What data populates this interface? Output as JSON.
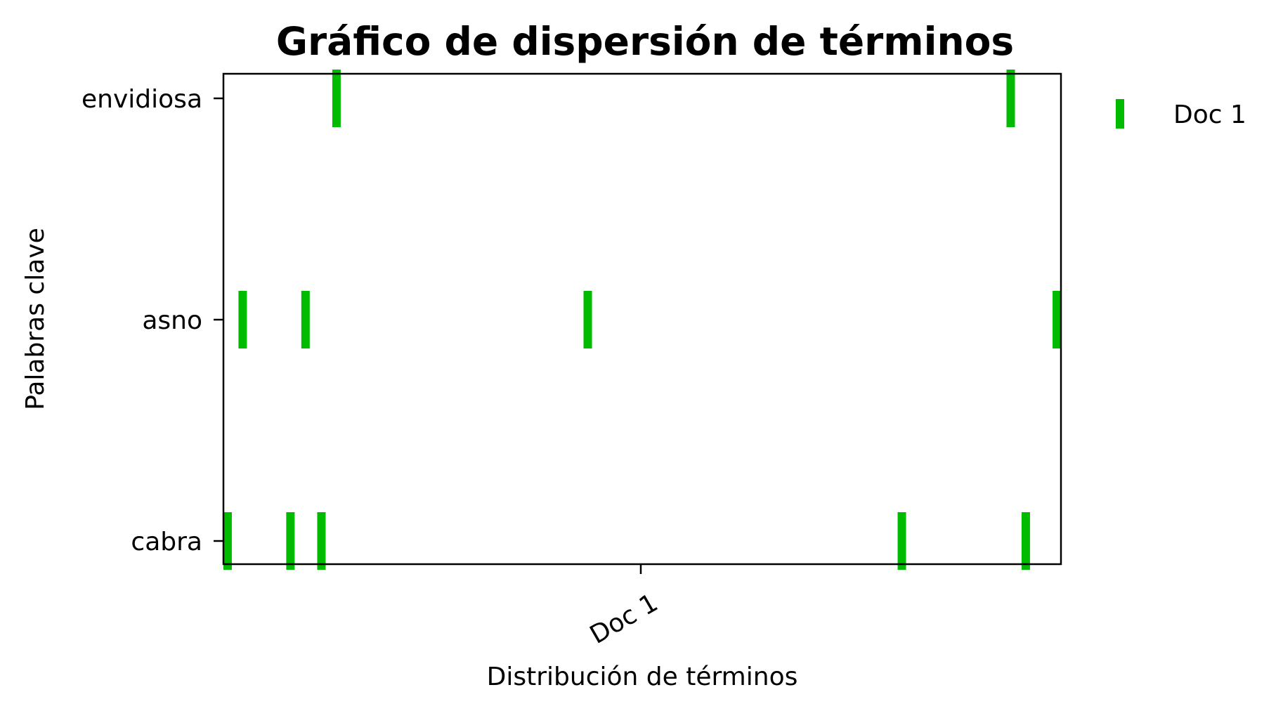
{
  "chart_data": {
    "type": "scatter",
    "title": "Gráfico de dispersión de términos",
    "xlabel": "Distribución de términos",
    "ylabel": "Palabras clave",
    "x_ticks": [
      "Doc 1"
    ],
    "y_categories": [
      "cabra",
      "asno",
      "envidiosa"
    ],
    "xlim": [
      0,
      1
    ],
    "legend": {
      "position": "outside-right",
      "entries": [
        "Doc 1"
      ]
    },
    "grid": false,
    "series": [
      {
        "name": "Doc 1",
        "color": "#00bb00",
        "marker": "vertical-line",
        "points": [
          {
            "keyword": "envidiosa",
            "x": 0.135
          },
          {
            "keyword": "envidiosa",
            "x": 0.94
          },
          {
            "keyword": "asno",
            "x": 0.023
          },
          {
            "keyword": "asno",
            "x": 0.098
          },
          {
            "keyword": "asno",
            "x": 0.435
          },
          {
            "keyword": "asno",
            "x": 0.995
          },
          {
            "keyword": "cabra",
            "x": 0.005
          },
          {
            "keyword": "cabra",
            "x": 0.08
          },
          {
            "keyword": "cabra",
            "x": 0.117
          },
          {
            "keyword": "cabra",
            "x": 0.81
          },
          {
            "keyword": "cabra",
            "x": 0.958
          }
        ]
      }
    ]
  }
}
